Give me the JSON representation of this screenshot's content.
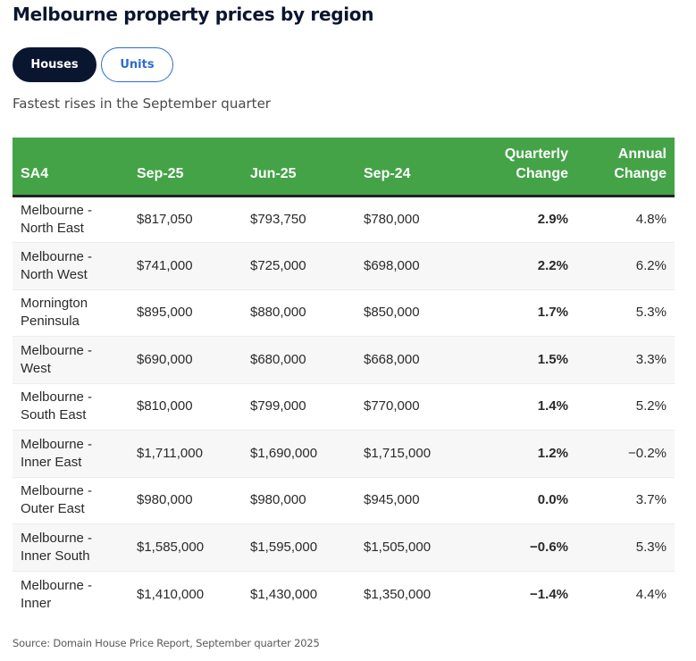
{
  "header": {
    "title": "Melbourne property prices by region"
  },
  "tabs": [
    {
      "label": "Houses",
      "active": true
    },
    {
      "label": "Units",
      "active": false
    }
  ],
  "subtitle": "Fastest rises in the September quarter",
  "table": {
    "columns": [
      {
        "label": "SA4",
        "label2": ""
      },
      {
        "label": "Sep-25",
        "label2": ""
      },
      {
        "label": "Jun-25",
        "label2": ""
      },
      {
        "label": "Sep-24",
        "label2": ""
      },
      {
        "label": "Quarterly",
        "label2": "Change"
      },
      {
        "label": "Annual",
        "label2": "Change"
      }
    ],
    "rows": [
      {
        "region1": "Melbourne -",
        "region2": "North East",
        "sep25": "$817,050",
        "jun25": "$793,750",
        "sep24": "$780,000",
        "quarterly": "2.9%",
        "annual": "4.8%"
      },
      {
        "region1": "Melbourne -",
        "region2": "North West",
        "sep25": "$741,000",
        "jun25": "$725,000",
        "sep24": "$698,000",
        "quarterly": "2.2%",
        "annual": "6.2%"
      },
      {
        "region1": "Mornington",
        "region2": "Peninsula",
        "sep25": "$895,000",
        "jun25": "$880,000",
        "sep24": "$850,000",
        "quarterly": "1.7%",
        "annual": "5.3%"
      },
      {
        "region1": "Melbourne -",
        "region2": "West",
        "sep25": "$690,000",
        "jun25": "$680,000",
        "sep24": "$668,000",
        "quarterly": "1.5%",
        "annual": "3.3%"
      },
      {
        "region1": "Melbourne -",
        "region2": "South East",
        "sep25": "$810,000",
        "jun25": "$799,000",
        "sep24": "$770,000",
        "quarterly": "1.4%",
        "annual": "5.2%"
      },
      {
        "region1": "Melbourne -",
        "region2": "Inner East",
        "sep25": "$1,711,000",
        "jun25": "$1,690,000",
        "sep24": "$1,715,000",
        "quarterly": "1.2%",
        "annual": "−0.2%"
      },
      {
        "region1": "Melbourne -",
        "region2": "Outer East",
        "sep25": "$980,000",
        "jun25": "$980,000",
        "sep24": "$945,000",
        "quarterly": "0.0%",
        "annual": "3.7%"
      },
      {
        "region1": "Melbourne -",
        "region2": "Inner South",
        "sep25": "$1,585,000",
        "jun25": "$1,595,000",
        "sep24": "$1,505,000",
        "quarterly": "−0.6%",
        "annual": "5.3%"
      },
      {
        "region1": "Melbourne -",
        "region2": "Inner",
        "sep25": "$1,410,000",
        "jun25": "$1,430,000",
        "sep24": "$1,350,000",
        "quarterly": "−1.4%",
        "annual": "4.4%"
      }
    ]
  },
  "source": "Source: Domain House Price Report, September quarter 2025",
  "colors": {
    "header_green": "#44a347",
    "navy": "#0a1630",
    "link_blue": "#2b6cd4",
    "stripe": "#f7f7f7"
  }
}
